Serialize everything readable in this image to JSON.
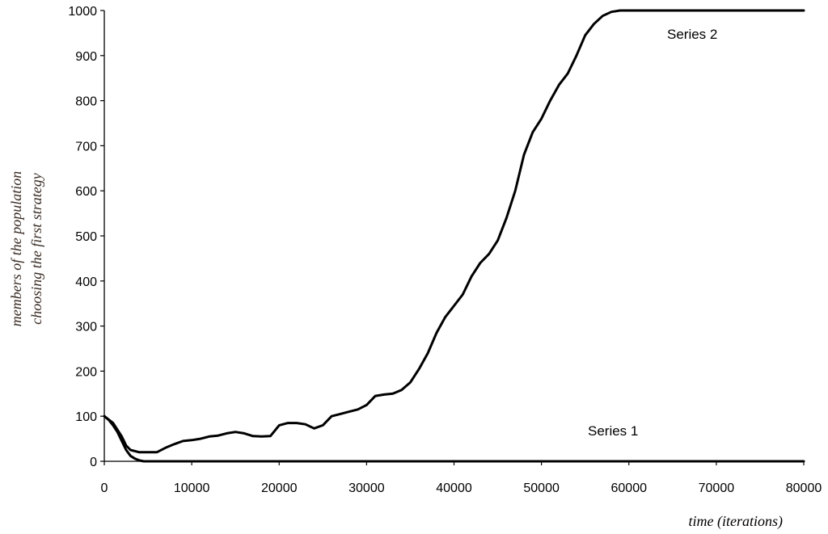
{
  "chart_data": {
    "type": "line",
    "title": "",
    "xlabel": "time (iterations)",
    "ylabel": [
      "members of the population",
      "choosing the first strategy"
    ],
    "xlim": [
      0,
      80000
    ],
    "ylim": [
      0,
      1000
    ],
    "x_ticks": [
      0,
      10000,
      20000,
      30000,
      40000,
      50000,
      60000,
      70000,
      80000
    ],
    "y_ticks": [
      0,
      100,
      200,
      300,
      400,
      500,
      600,
      700,
      800,
      900,
      1000
    ],
    "grid": false,
    "legend": "none",
    "line_color": "#000000",
    "series": [
      {
        "name": "Series 1",
        "points": [
          [
            0,
            100
          ],
          [
            500,
            92
          ],
          [
            1000,
            80
          ],
          [
            1500,
            65
          ],
          [
            2000,
            45
          ],
          [
            2500,
            25
          ],
          [
            3000,
            12
          ],
          [
            3500,
            6
          ],
          [
            4000,
            2
          ],
          [
            4500,
            0
          ],
          [
            80000,
            0
          ]
        ]
      },
      {
        "name": "Series 2",
        "points": [
          [
            0,
            100
          ],
          [
            1000,
            85
          ],
          [
            2000,
            55
          ],
          [
            2500,
            35
          ],
          [
            3000,
            25
          ],
          [
            4000,
            20
          ],
          [
            5000,
            20
          ],
          [
            6000,
            20
          ],
          [
            7000,
            30
          ],
          [
            8000,
            38
          ],
          [
            9000,
            45
          ],
          [
            10000,
            47
          ],
          [
            11000,
            50
          ],
          [
            12000,
            55
          ],
          [
            13000,
            57
          ],
          [
            14000,
            62
          ],
          [
            15000,
            65
          ],
          [
            16000,
            62
          ],
          [
            17000,
            56
          ],
          [
            18000,
            55
          ],
          [
            19000,
            56
          ],
          [
            20000,
            80
          ],
          [
            21000,
            85
          ],
          [
            22000,
            85
          ],
          [
            23000,
            82
          ],
          [
            24000,
            73
          ],
          [
            25000,
            80
          ],
          [
            26000,
            100
          ],
          [
            27000,
            105
          ],
          [
            28000,
            110
          ],
          [
            29000,
            115
          ],
          [
            30000,
            125
          ],
          [
            31000,
            145
          ],
          [
            32000,
            148
          ],
          [
            33000,
            150
          ],
          [
            34000,
            158
          ],
          [
            35000,
            175
          ],
          [
            36000,
            205
          ],
          [
            37000,
            240
          ],
          [
            38000,
            285
          ],
          [
            39000,
            320
          ],
          [
            40000,
            345
          ],
          [
            41000,
            370
          ],
          [
            42000,
            410
          ],
          [
            43000,
            440
          ],
          [
            44000,
            460
          ],
          [
            45000,
            490
          ],
          [
            46000,
            540
          ],
          [
            47000,
            600
          ],
          [
            48000,
            680
          ],
          [
            49000,
            730
          ],
          [
            50000,
            760
          ],
          [
            51000,
            800
          ],
          [
            52000,
            835
          ],
          [
            53000,
            860
          ],
          [
            54000,
            900
          ],
          [
            55000,
            945
          ],
          [
            56000,
            970
          ],
          [
            57000,
            988
          ],
          [
            58000,
            997
          ],
          [
            59000,
            1000
          ],
          [
            80000,
            1000
          ]
        ]
      }
    ]
  }
}
